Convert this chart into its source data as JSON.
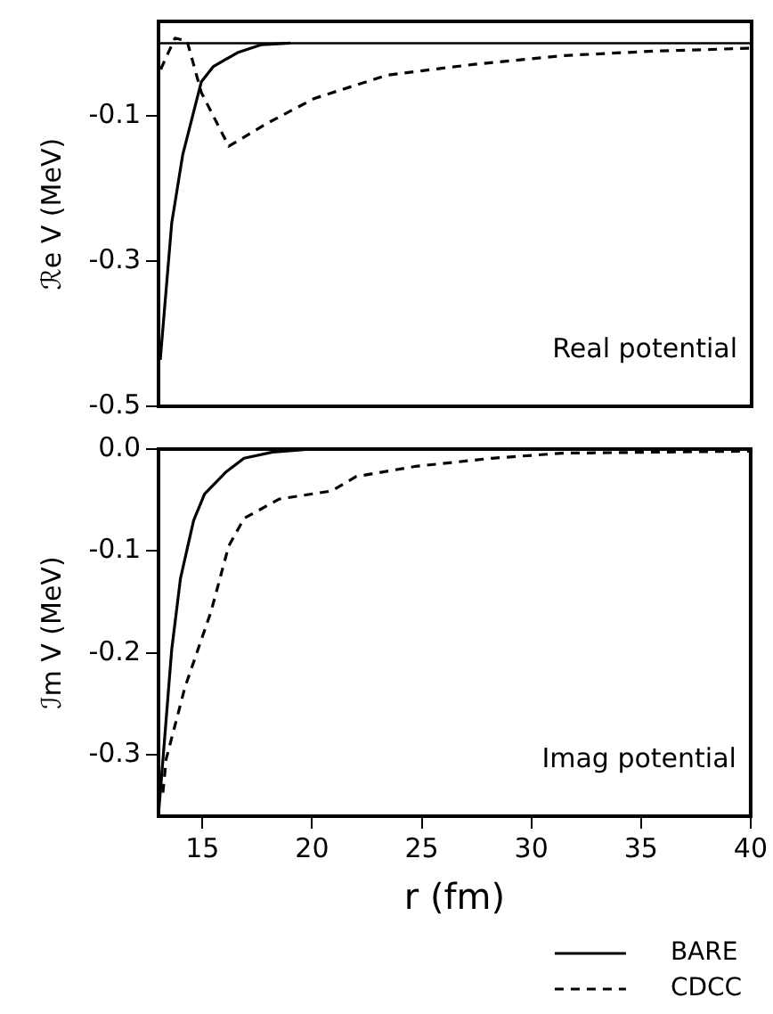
{
  "chart_data": [
    {
      "type": "line",
      "ylabel": "ℛe V (MeV)",
      "xlim": [
        13,
        40
      ],
      "ylim": [
        -0.5,
        0.03
      ],
      "yticks": [
        -0.1,
        -0.3,
        -0.5
      ],
      "tick_labels": "y",
      "marker": "none",
      "legend": false,
      "annotations": [
        "Real potential"
      ],
      "ref_lines": [
        {
          "axis": "y",
          "value": 0,
          "color": "#000000"
        }
      ],
      "series": [
        {
          "color": "#000000",
          "line_style": "solid",
          "x": [
            13.08,
            13.6,
            14.1,
            14.95,
            15.5,
            16.6,
            17.7,
            19
          ],
          "values": [
            -0.436,
            -0.248,
            -0.154,
            -0.053,
            -0.032,
            -0.013,
            -0.002,
            0
          ]
        },
        {
          "color": "#000000",
          "line_style": "dashed",
          "x": [
            13.1,
            13.75,
            14.3,
            14.95,
            16.2,
            17.9,
            20.1,
            23.4,
            27.4,
            31.5,
            35.5,
            39.9
          ],
          "values": [
            -0.036,
            0.007,
            0.003,
            -0.068,
            -0.142,
            -0.111,
            -0.076,
            -0.044,
            -0.029,
            -0.017,
            -0.011,
            -0.007
          ]
        }
      ]
    },
    {
      "type": "line",
      "xlabel": "r (fm)",
      "ylabel": "ℐm V (MeV)",
      "xlim": [
        13,
        40
      ],
      "ylim": [
        -0.36,
        0
      ],
      "xticks": [
        15,
        20,
        25,
        30,
        35,
        40
      ],
      "yticks": [
        {
          "value": 0,
          "label": "0.0"
        },
        -0.1,
        -0.2,
        -0.3
      ],
      "marker": "none",
      "legend": "bottom right",
      "annotations": [
        "Imag potential"
      ],
      "series": [
        {
          "name": "BARE",
          "color": "#000000",
          "line_style": "solid",
          "x": [
            13.0,
            13.2,
            13.6,
            14.0,
            14.6,
            15.1,
            16.1,
            16.9,
            18.2,
            20
          ],
          "values": [
            -0.358,
            -0.305,
            -0.197,
            -0.127,
            -0.07,
            -0.044,
            -0.022,
            -0.009,
            -0.003,
            0
          ]
        },
        {
          "name": "CDCC",
          "color": "#000000",
          "line_style": "dashed",
          "x": [
            13.2,
            13.35,
            14.2,
            15.4,
            16.2,
            16.9,
            18.5,
            20.9,
            22.0,
            24.7,
            28.2,
            31.4,
            40
          ],
          "values": [
            -0.337,
            -0.304,
            -0.234,
            -0.159,
            -0.095,
            -0.068,
            -0.049,
            -0.041,
            -0.027,
            -0.017,
            -0.009,
            -0.004,
            -0.002
          ]
        }
      ]
    }
  ]
}
